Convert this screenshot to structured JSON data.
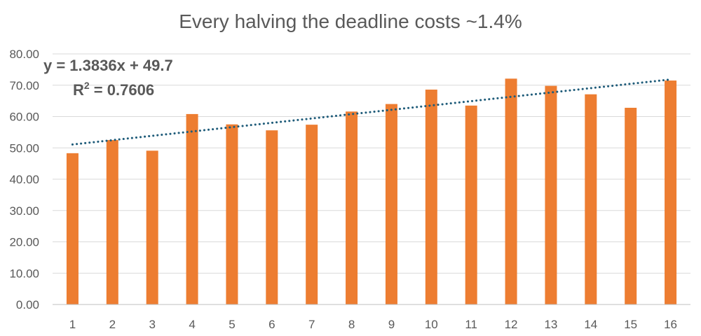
{
  "chart_data": {
    "type": "bar",
    "title": "Every halving the deadline costs ~1.4%",
    "xlabel": "",
    "ylabel": "",
    "categories": [
      "1",
      "2",
      "3",
      "4",
      "5",
      "6",
      "7",
      "8",
      "9",
      "10",
      "11",
      "12",
      "13",
      "14",
      "15",
      "16"
    ],
    "values": [
      48.3,
      52.5,
      49.1,
      60.8,
      57.5,
      55.6,
      57.4,
      61.6,
      64.0,
      68.6,
      63.5,
      72.1,
      69.8,
      67.1,
      62.8,
      71.5
    ],
    "ylim": [
      0,
      80
    ],
    "yticks": [
      0,
      10,
      20,
      30,
      40,
      50,
      60,
      70,
      80
    ],
    "ytick_labels": [
      "0.00",
      "10.00",
      "20.00",
      "30.00",
      "40.00",
      "50.00",
      "60.00",
      "70.00",
      "80.00"
    ],
    "grid": true,
    "legend": "none",
    "bar_color": "#ED7D31",
    "trendline": {
      "type": "linear",
      "slope": 1.3836,
      "intercept": 49.7,
      "equation_label": "y = 1.3836x + 49.7",
      "r_squared_prefix": "R",
      "r_squared_sup": "2",
      "r_squared_value": " = 0.7606",
      "color": "#1F5C7A",
      "style": "dotted"
    }
  }
}
